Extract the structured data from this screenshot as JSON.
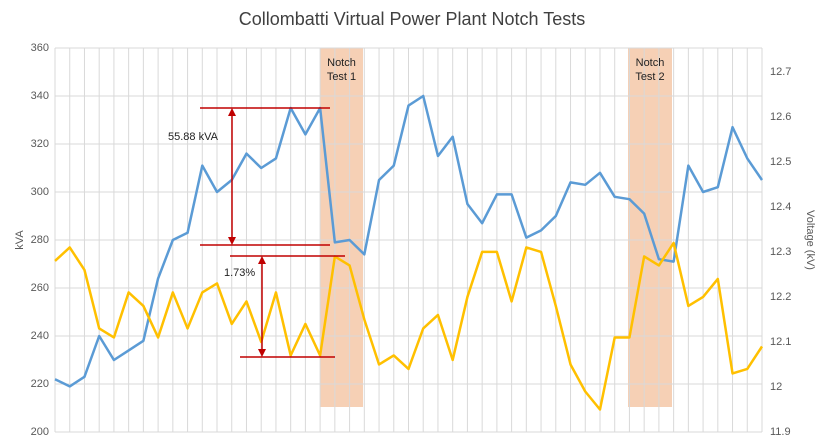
{
  "chart_data": {
    "type": "line",
    "title": "Collombatti Virtual Power Plant Notch Tests",
    "y_label": "kVA",
    "y2_label": "Voltage (kV)",
    "annotations": [
      "Notch Test 1",
      "Notch Test 2",
      "55.88 kVA",
      "1.73%"
    ],
    "categories": [
      null,
      null,
      null,
      null,
      null,
      null,
      null,
      null,
      null,
      null,
      null,
      null,
      null,
      null,
      null,
      null,
      null,
      null,
      null,
      null,
      null,
      null,
      null,
      null,
      null,
      null,
      null,
      null,
      null,
      null,
      null,
      null,
      null,
      null,
      null,
      null,
      null,
      null,
      null,
      null,
      null,
      null,
      null,
      null,
      null,
      null,
      null,
      null,
      null
    ],
    "series": [
      {
        "name": "kVA",
        "color": "#5b9bd5",
        "axis": "y",
        "values": [
          222,
          219,
          223,
          240,
          230,
          234,
          238,
          264,
          280,
          283,
          311,
          300,
          305,
          316,
          310,
          314,
          335,
          324,
          335,
          279,
          280,
          274,
          305,
          311,
          336,
          340,
          315,
          323,
          295,
          287,
          299,
          299,
          281,
          284,
          290,
          304,
          303,
          308,
          298,
          297,
          291,
          272,
          271,
          311,
          300,
          302,
          327,
          314,
          305
        ]
      },
      {
        "name": "Voltage",
        "color": "#ffc000",
        "axis": "y2",
        "values": [
          12.28,
          12.31,
          12.26,
          12.13,
          12.11,
          12.21,
          12.18,
          12.11,
          12.21,
          12.13,
          12.21,
          12.23,
          12.14,
          12.19,
          12.1,
          12.21,
          12.07,
          12.14,
          12.07,
          12.29,
          12.27,
          12.15,
          12.05,
          12.07,
          12.04,
          12.13,
          12.16,
          12.06,
          12.2,
          12.3,
          12.3,
          12.19,
          12.31,
          12.3,
          12.18,
          12.05,
          11.99,
          11.95,
          12.11,
          12.11,
          12.29,
          12.27,
          12.32,
          12.18,
          12.2,
          12.24,
          12.03,
          12.04,
          12.09
        ]
      }
    ],
    "ylim": [
      200,
      360
    ],
    "yticks": [
      200,
      220,
      240,
      260,
      280,
      300,
      320,
      340,
      360
    ],
    "y2lim": [
      11.9,
      12.753
    ],
    "y2ticks": [
      11.9,
      12,
      12.1,
      12.2,
      12.3,
      12.4,
      12.5,
      12.6,
      12.7
    ],
    "grid": true
  }
}
